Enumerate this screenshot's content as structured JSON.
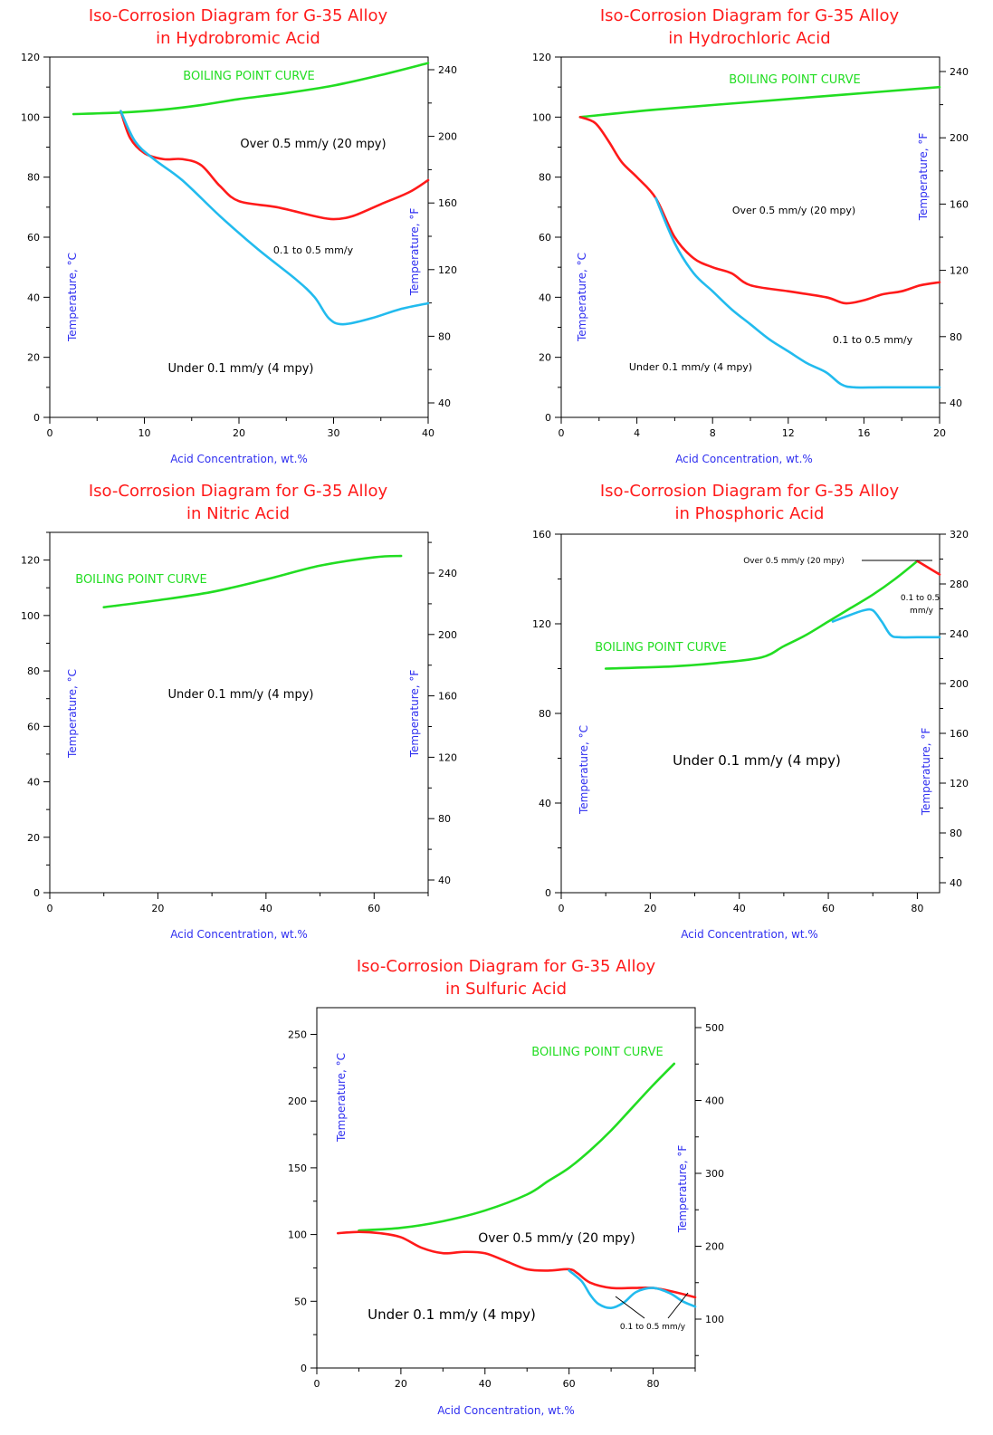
{
  "chart_data": [
    {
      "type": "line",
      "title": [
        "Iso-Corrosion Diagram for G-35 Alloy",
        "in Hydrobromic Acid"
      ],
      "xlabel": "Acid Concentration, wt.%",
      "ylabel": "Temperature, °C",
      "y2label": "Temperature, °F",
      "xlim": [
        0,
        40
      ],
      "ylim": [
        0,
        120
      ],
      "xticks": [
        0,
        10,
        20,
        30,
        40
      ],
      "yticks": [
        0,
        20,
        40,
        60,
        80,
        100,
        120
      ],
      "y2ticks": [
        40,
        80,
        120,
        160,
        200,
        240
      ],
      "series": [
        {
          "name": "BOILING POINT CURVE",
          "color": "#22dd22",
          "x": [
            2.5,
            7.5,
            12,
            16,
            20,
            25,
            30,
            35,
            40
          ],
          "y": [
            101,
            101.5,
            102.5,
            104,
            106,
            108,
            110.5,
            114,
            118
          ]
        },
        {
          "color": "#ff1a1a",
          "x": [
            7.5,
            8.5,
            10,
            12,
            14,
            16,
            18,
            20,
            24,
            28,
            30,
            32,
            35,
            38,
            40
          ],
          "y": [
            102,
            93,
            88,
            86,
            86,
            84,
            77,
            72,
            70,
            67,
            66,
            67,
            71,
            75,
            79
          ]
        },
        {
          "color": "#22bbee",
          "x": [
            7.5,
            9,
            11,
            14,
            18,
            22,
            26,
            28,
            29.5,
            31,
            34,
            37,
            40
          ],
          "y": [
            102,
            92,
            86,
            79,
            67,
            56,
            46,
            40,
            33,
            31,
            33,
            36,
            38
          ]
        }
      ],
      "annotations": [
        "BOILING POINT CURVE",
        "Over 0.5 mm/y (20 mpy)",
        "0.1 to 0.5 mm/y",
        "Under 0.1 mm/y (4 mpy)"
      ]
    },
    {
      "type": "line",
      "title": [
        "Iso-Corrosion Diagram for G-35 Alloy",
        "in Hydrochloric Acid"
      ],
      "xlabel": "Acid Concentration, wt.%",
      "ylabel": "Temperature, °C",
      "y2label": "Temperature, °F",
      "xlim": [
        0,
        20
      ],
      "ylim": [
        0,
        120
      ],
      "xticks": [
        0,
        4,
        8,
        12,
        16,
        20
      ],
      "yticks": [
        0,
        20,
        40,
        60,
        80,
        100,
        120
      ],
      "y2ticks": [
        40,
        80,
        120,
        160,
        200,
        240
      ],
      "series": [
        {
          "name": "BOILING POINT CURVE",
          "color": "#22dd22",
          "x": [
            1,
            5,
            10,
            15,
            20
          ],
          "y": [
            100,
            102.5,
            105,
            107.5,
            110
          ]
        },
        {
          "color": "#ff1a1a",
          "x": [
            1,
            1.8,
            2.5,
            3.2,
            4,
            5,
            6,
            7,
            8,
            9,
            10,
            12,
            14,
            15,
            16,
            17,
            18,
            19,
            20
          ],
          "y": [
            100,
            98,
            92,
            85,
            80,
            73,
            60,
            53,
            50,
            48,
            44,
            42,
            40,
            38,
            39,
            41,
            42,
            44,
            45
          ]
        },
        {
          "color": "#22bbee",
          "x": [
            5,
            6,
            7,
            8,
            9,
            10,
            11,
            12,
            13,
            14,
            14.8,
            15.5,
            17,
            20
          ],
          "y": [
            73,
            58,
            48,
            42,
            36,
            31,
            26,
            22,
            18,
            15,
            11,
            10,
            10,
            10
          ]
        }
      ],
      "annotations": [
        "BOILING POINT CURVE",
        "Over 0.5 mm/y (20 mpy)",
        "0.1 to 0.5 mm/y",
        "Under 0.1 mm/y (4 mpy)"
      ]
    },
    {
      "type": "line",
      "title": [
        "Iso-Corrosion Diagram for G-35 Alloy",
        "in Nitric Acid"
      ],
      "xlabel": "Acid Concentration, wt.%",
      "ylabel": "Temperature, °C",
      "y2label": "Temperature, °F",
      "xlim": [
        0,
        70
      ],
      "ylim": [
        0,
        130
      ],
      "xticks": [
        0,
        20,
        40,
        60
      ],
      "yticks": [
        0,
        20,
        40,
        60,
        80,
        100,
        120
      ],
      "y2ticks": [
        40,
        80,
        120,
        160,
        200,
        240
      ],
      "series": [
        {
          "name": "BOILING POINT CURVE",
          "color": "#22dd22",
          "x": [
            10,
            20,
            30,
            40,
            50,
            60,
            65
          ],
          "y": [
            103,
            105.5,
            108.5,
            113,
            118,
            121,
            121.5
          ]
        }
      ],
      "annotations": [
        "BOILING POINT CURVE",
        "Under 0.1 mm/y (4 mpy)"
      ]
    },
    {
      "type": "line",
      "title": [
        "Iso-Corrosion Diagram for G-35 Alloy",
        "in Phosphoric Acid"
      ],
      "xlabel": "Acid Concentration, wt.%",
      "ylabel": "Temperature, °C",
      "y2label": "Temperature, °F",
      "xlim": [
        0,
        85
      ],
      "ylim": [
        0,
        160
      ],
      "xticks": [
        0,
        20,
        40,
        60,
        80
      ],
      "yticks": [
        0,
        40,
        80,
        120,
        160
      ],
      "y2ticks": [
        40,
        80,
        120,
        160,
        200,
        240,
        280,
        320
      ],
      "series": [
        {
          "name": "BOILING POINT CURVE",
          "color": "#22dd22",
          "x": [
            10,
            25,
            35,
            45,
            50,
            55,
            60,
            65,
            70,
            75,
            80
          ],
          "y": [
            100,
            101,
            102.5,
            105,
            110,
            115,
            121,
            127,
            133,
            140,
            148
          ]
        },
        {
          "color": "#ff1a1a",
          "x": [
            80,
            82.5,
            85
          ],
          "y": [
            148,
            145,
            142
          ]
        },
        {
          "color": "#22bbee",
          "x": [
            61,
            65,
            68,
            70,
            72,
            74,
            76,
            80,
            85
          ],
          "y": [
            121,
            124,
            126,
            126,
            121,
            115,
            114,
            114,
            114
          ]
        }
      ],
      "annotations": [
        "BOILING POINT CURVE",
        "Over 0.5 mm/y (20 mpy)",
        "0.1 to 0.5 mm/y",
        "Under 0.1 mm/y (4 mpy)"
      ]
    },
    {
      "type": "line",
      "title": [
        "Iso-Corrosion Diagram for G-35 Alloy",
        "in Sulfuric Acid"
      ],
      "xlabel": "Acid Concentration, wt.%",
      "ylabel": "Temperature, °C",
      "y2label": "Temperature, °F",
      "xlim": [
        0,
        90
      ],
      "ylim": [
        0,
        270
      ],
      "xticks": [
        0,
        20,
        40,
        60,
        80
      ],
      "yticks": [
        0,
        50,
        100,
        150,
        200,
        250
      ],
      "y2ticks": [
        100,
        200,
        300,
        400,
        500
      ],
      "series": [
        {
          "name": "BOILING POINT CURVE",
          "color": "#22dd22",
          "x": [
            10,
            20,
            30,
            40,
            50,
            55,
            60,
            65,
            70,
            75,
            80,
            85
          ],
          "y": [
            103,
            105,
            110,
            118,
            130,
            140,
            150,
            163,
            178,
            195,
            212,
            228
          ]
        },
        {
          "color": "#ff1a1a",
          "x": [
            5,
            10,
            15,
            20,
            25,
            30,
            35,
            40,
            45,
            50,
            55,
            60,
            62,
            65,
            70,
            75,
            80,
            85,
            90
          ],
          "y": [
            101,
            102,
            101,
            98,
            90,
            86,
            87,
            86,
            80,
            74,
            73,
            74,
            71,
            64,
            60,
            60,
            60,
            57,
            53
          ]
        },
        {
          "color": "#22bbee",
          "x": [
            60,
            63,
            65,
            67,
            70,
            73,
            76,
            80,
            84,
            87,
            90
          ],
          "y": [
            73,
            65,
            55,
            48,
            45,
            49,
            57,
            60,
            56,
            50,
            46
          ]
        }
      ],
      "annotations": [
        "BOILING POINT CURVE",
        "Over 0.5 mm/y (20 mpy)",
        "0.1 to 0.5 mm/y",
        "Under 0.1 mm/y (4 mpy)"
      ]
    }
  ]
}
